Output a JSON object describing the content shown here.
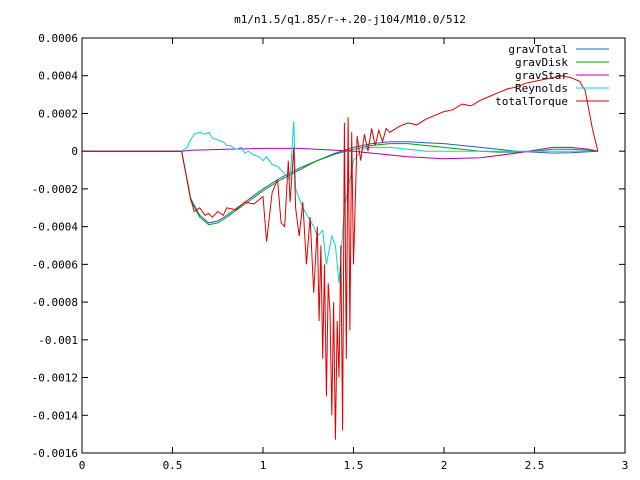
{
  "chart_data": {
    "type": "line",
    "title": "m1/n1.5/q1.85/r-+.20-j104/M10.0/512",
    "xlabel": "",
    "ylabel": "",
    "xlim": [
      0,
      3
    ],
    "ylim": [
      -0.0016,
      0.0006
    ],
    "x_ticks": [
      0,
      0.5,
      1,
      1.5,
      2,
      2.5,
      3
    ],
    "x_tick_labels": [
      "0",
      "0.5",
      "1",
      "1.5",
      "2",
      "2.5",
      "3"
    ],
    "y_ticks": [
      0.0006,
      0.0004,
      0.0002,
      0,
      -0.0002,
      -0.0004,
      -0.0006,
      -0.0008,
      -0.001,
      -0.0012,
      -0.0014,
      -0.0016
    ],
    "y_tick_labels": [
      "0.0006",
      "0.0004",
      "0.0002",
      "0",
      "-0.0002",
      "-0.0004",
      "-0.0006",
      "-0.0008",
      "-0.001",
      "-0.0012",
      "-0.0014",
      "-0.0016"
    ],
    "grid": false,
    "legend_position": "top-right",
    "series": [
      {
        "name": "gravTotal",
        "color": "#1f5fc8",
        "x": [
          0,
          0.55,
          0.57,
          0.6,
          0.65,
          0.7,
          0.75,
          0.8,
          0.9,
          1.0,
          1.1,
          1.2,
          1.3,
          1.4,
          1.5,
          1.6,
          1.7,
          1.8,
          1.9,
          2.0,
          2.1,
          2.2,
          2.3,
          2.4,
          2.5,
          2.6,
          2.7,
          2.8,
          2.85
        ],
        "y": [
          0,
          0,
          -0.0001,
          -0.00025,
          -0.00034,
          -0.00038,
          -0.00037,
          -0.00034,
          -0.00027,
          -0.0002,
          -0.00014,
          -9e-05,
          -5e-05,
          -1e-05,
          2e-05,
          4e-05,
          5e-05,
          5e-05,
          4.5e-05,
          4e-05,
          3e-05,
          2e-05,
          1e-05,
          0.0,
          -5e-06,
          -1e-05,
          -8e-06,
          -3e-06,
          0
        ]
      },
      {
        "name": "gravDisk",
        "color": "#00a000",
        "x": [
          0,
          0.55,
          0.57,
          0.6,
          0.65,
          0.7,
          0.75,
          0.8,
          0.9,
          1.0,
          1.1,
          1.2,
          1.3,
          1.4,
          1.5,
          1.6,
          1.7,
          1.8,
          1.9,
          2.0,
          2.1,
          2.2,
          2.3,
          2.4,
          2.5,
          2.6,
          2.7,
          2.8,
          2.85
        ],
        "y": [
          0,
          0,
          -0.0001,
          -0.00026,
          -0.00035,
          -0.00039,
          -0.00038,
          -0.00035,
          -0.00028,
          -0.00021,
          -0.00015,
          -0.0001,
          -5e-05,
          -1.5e-05,
          1e-05,
          3e-05,
          4e-05,
          4e-05,
          3e-05,
          2e-05,
          1e-05,
          0.0,
          -5e-06,
          -5e-06,
          0.0,
          1e-05,
          1e-05,
          5e-06,
          0
        ]
      },
      {
        "name": "gravStar",
        "color": "#b000b0",
        "x": [
          0,
          0.55,
          0.6,
          0.8,
          1.0,
          1.2,
          1.4,
          1.5,
          1.6,
          1.8,
          2.0,
          2.2,
          2.4,
          2.5,
          2.6,
          2.7,
          2.8,
          2.85
        ],
        "y": [
          0,
          0,
          5e-06,
          1e-05,
          1.5e-05,
          1.5e-05,
          5e-06,
          0.0,
          -1e-05,
          -3e-05,
          -4e-05,
          -3.5e-05,
          -1e-05,
          5e-06,
          2e-05,
          2e-05,
          1e-05,
          0
        ]
      },
      {
        "name": "Reynolds",
        "color": "#00d8d8",
        "x": [
          0.55,
          0.58,
          0.6,
          0.62,
          0.65,
          0.68,
          0.7,
          0.72,
          0.75,
          0.78,
          0.8,
          0.82,
          0.85,
          0.88,
          0.9,
          0.92,
          0.95,
          0.98,
          1.0,
          1.02,
          1.05,
          1.08,
          1.1,
          1.12,
          1.15,
          1.17,
          1.18,
          1.2,
          1.22,
          1.25,
          1.28,
          1.3,
          1.33,
          1.35,
          1.38,
          1.4,
          1.42,
          1.45,
          1.48,
          1.5,
          1.55,
          1.6,
          1.7,
          1.8,
          1.9,
          2.0,
          2.2,
          2.4,
          2.6,
          2.8
        ],
        "y": [
          0,
          2e-05,
          6e-05,
          9e-05,
          0.0001,
          9e-05,
          0.0001,
          7e-05,
          6e-05,
          5e-05,
          3e-05,
          3e-05,
          1e-05,
          2e-05,
          -1e-05,
          0.0,
          -2e-05,
          -3e-05,
          -5e-05,
          -3e-05,
          -7e-05,
          -8e-05,
          -0.0001,
          -0.00012,
          -0.00015,
          0.00016,
          -0.0002,
          -0.00025,
          -0.0003,
          -0.00035,
          -0.0004,
          -0.00045,
          -0.00042,
          -0.0006,
          -0.00045,
          -0.0005,
          -0.0007,
          -0.0003,
          -0.00015,
          -5e-05,
          1e-05,
          2e-05,
          2e-05,
          1e-05,
          0.0,
          0.0,
          0.0,
          0.0,
          0.0,
          0.0
        ]
      },
      {
        "name": "totalTorque",
        "color": "#e00000",
        "x": [
          0,
          0.55,
          0.57,
          0.6,
          0.62,
          0.65,
          0.68,
          0.7,
          0.72,
          0.75,
          0.78,
          0.8,
          0.85,
          0.9,
          0.95,
          1.0,
          1.02,
          1.05,
          1.08,
          1.1,
          1.12,
          1.14,
          1.15,
          1.17,
          1.18,
          1.2,
          1.22,
          1.24,
          1.26,
          1.28,
          1.3,
          1.31,
          1.32,
          1.33,
          1.34,
          1.35,
          1.36,
          1.37,
          1.38,
          1.39,
          1.4,
          1.41,
          1.42,
          1.43,
          1.44,
          1.45,
          1.46,
          1.47,
          1.48,
          1.49,
          1.5,
          1.52,
          1.54,
          1.56,
          1.58,
          1.6,
          1.62,
          1.64,
          1.66,
          1.68,
          1.7,
          1.75,
          1.8,
          1.85,
          1.9,
          1.95,
          2.0,
          2.05,
          2.1,
          2.15,
          2.2,
          2.25,
          2.3,
          2.35,
          2.4,
          2.45,
          2.5,
          2.55,
          2.6,
          2.65,
          2.7,
          2.75,
          2.78,
          2.8,
          2.82,
          2.84,
          2.85
        ],
        "y": [
          0,
          0,
          -0.0001,
          -0.00025,
          -0.00032,
          -0.0003,
          -0.00034,
          -0.00033,
          -0.00035,
          -0.00032,
          -0.00034,
          -0.0003,
          -0.00031,
          -0.00027,
          -0.00028,
          -0.00024,
          -0.00048,
          -0.00022,
          -0.00015,
          -0.00038,
          -0.0004,
          -5e-05,
          -0.00027,
          2e-05,
          -0.0003,
          -0.00045,
          -0.00027,
          -0.0006,
          -0.00035,
          -0.00075,
          -0.0004,
          -0.0009,
          -0.0005,
          -0.0011,
          -0.0006,
          -0.0013,
          -0.0007,
          -0.00085,
          -0.0014,
          -0.0008,
          -0.00153,
          -0.0009,
          -0.0012,
          -0.0005,
          -0.00148,
          0.00015,
          -0.0011,
          0.00018,
          -0.00095,
          0.0001,
          -0.0006,
          8e-05,
          -5e-05,
          9e-05,
          0.0,
          0.00012,
          3e-05,
          0.00011,
          5e-05,
          0.00012,
          0.0001,
          0.00013,
          0.00015,
          0.00014,
          0.00017,
          0.00019,
          0.00021,
          0.00022,
          0.00025,
          0.00024,
          0.00027,
          0.00029,
          0.00031,
          0.00033,
          0.00034,
          0.00036,
          0.00037,
          0.00038,
          0.00039,
          0.0004,
          0.00039,
          0.00037,
          0.00032,
          0.00022,
          0.00012,
          4e-05,
          0
        ]
      }
    ]
  }
}
